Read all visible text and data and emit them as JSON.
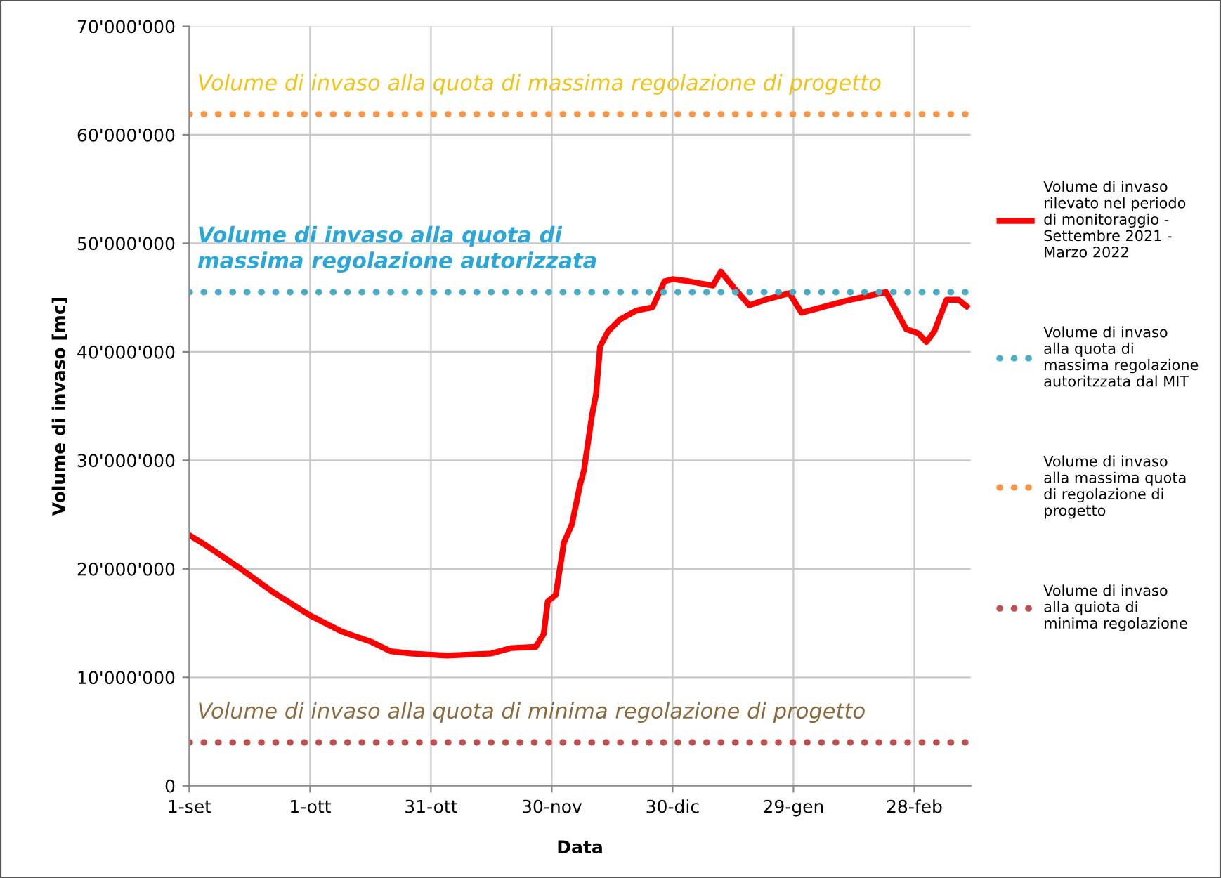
{
  "chart_data": {
    "type": "line",
    "xlabel": "Data",
    "ylabel": "Volume di invaso [mc]",
    "xlim": [
      "2021-09-01",
      "2022-03-14"
    ],
    "xticks": [
      {
        "value": "2021-09-01",
        "label": "1-set"
      },
      {
        "value": "2021-10-01",
        "label": "1-ott"
      },
      {
        "value": "2021-10-31",
        "label": "31-ott"
      },
      {
        "value": "2021-11-30",
        "label": "30-nov"
      },
      {
        "value": "2021-12-30",
        "label": "30-dic"
      },
      {
        "value": "2022-01-29",
        "label": "29-gen"
      },
      {
        "value": "2022-02-28",
        "label": "28-feb"
      }
    ],
    "ylim": [
      0,
      70000000
    ],
    "yticks": [
      0,
      {
        "value": 10000000,
        "label": "10'000'000"
      },
      {
        "value": 20000000,
        "label": "20'000'000"
      },
      {
        "value": 30000000,
        "label": "30'000'000"
      },
      {
        "value": 40000000,
        "label": "40'000'000"
      },
      {
        "value": 50000000,
        "label": "50'000'000"
      },
      {
        "value": 60000000,
        "label": "60'000'000"
      },
      {
        "value": 70000000,
        "label": "70'000'000"
      }
    ],
    "grid": true,
    "legend": "right",
    "marker": "none",
    "series": [
      {
        "name": "Volume di invaso rilevato nel periodo di monitoraggio - Settembre 2021 - Marzo 2022",
        "color": "#ff0000",
        "line_style": "solid",
        "x": [
          "2021-09-01",
          "2021-09-05",
          "2021-09-13",
          "2021-09-22",
          "2021-10-01",
          "2021-10-09",
          "2021-10-16",
          "2021-10-21",
          "2021-10-26",
          "2021-11-04",
          "2021-11-15",
          "2021-11-20",
          "2021-11-26",
          "2021-11-28",
          "2021-11-29",
          "2021-12-01",
          "2021-12-03",
          "2021-12-05",
          "2021-12-07",
          "2021-12-08",
          "2021-12-10",
          "2021-12-11",
          "2021-12-12",
          "2021-12-14",
          "2021-12-17",
          "2021-12-21",
          "2021-12-25",
          "2021-12-28",
          "2021-12-30",
          "2022-01-03",
          "2022-01-09",
          "2022-01-11",
          "2022-01-14",
          "2022-01-18",
          "2022-01-22",
          "2022-01-28",
          "2022-01-31",
          "2022-02-04",
          "2022-02-11",
          "2022-02-21",
          "2022-02-26",
          "2022-03-01",
          "2022-03-03",
          "2022-03-05",
          "2022-03-08",
          "2022-03-11",
          "2022-03-13"
        ],
        "values": [
          23100000,
          22200000,
          20200000,
          17800000,
          15700000,
          14200000,
          13300000,
          12400000,
          12200000,
          12000000,
          12200000,
          12700000,
          12800000,
          14000000,
          17000000,
          17600000,
          22400000,
          24100000,
          27700000,
          29100000,
          34200000,
          36100000,
          40500000,
          41900000,
          43000000,
          43800000,
          44100000,
          46500000,
          46700000,
          46500000,
          46100000,
          47400000,
          46000000,
          44300000,
          44800000,
          45400000,
          43600000,
          44000000,
          44700000,
          45500000,
          42100000,
          41700000,
          40900000,
          41900000,
          44800000,
          44800000,
          44200000
        ]
      },
      {
        "name": "Volume di invaso alla quota di massima regolazione autoritzzata dal MIT",
        "color": "#4bacc6",
        "line_style": "dotted",
        "x": [
          "2021-09-01",
          "2022-03-14"
        ],
        "values": [
          45500000,
          45500000
        ]
      },
      {
        "name": "Volume di invaso alla massima quota di regolazione di progetto",
        "color": "#f79646",
        "line_style": "dotted",
        "x": [
          "2021-09-01",
          "2022-03-14"
        ],
        "values": [
          61900000,
          61900000
        ]
      },
      {
        "name": "Volume di invaso alla quiota di minima regolazione",
        "color": "#c0504d",
        "line_style": "dotted",
        "x": [
          "2021-09-01",
          "2022-03-14"
        ],
        "values": [
          4000000,
          4000000
        ]
      }
    ],
    "annotations": [
      {
        "text": "Volume di invaso alla quota di massima regolazione di progetto",
        "x": "2021-09-03",
        "y": 61900000
      },
      {
        "text": "Volume di invaso alla quota di massima regolazione autorizzata",
        "x": "2021-09-03",
        "y": 45500000
      },
      {
        "text": "Volume di invaso alla quota di minima regolazione di progetto",
        "x": "2021-09-03",
        "y": 4000000
      }
    ]
  }
}
